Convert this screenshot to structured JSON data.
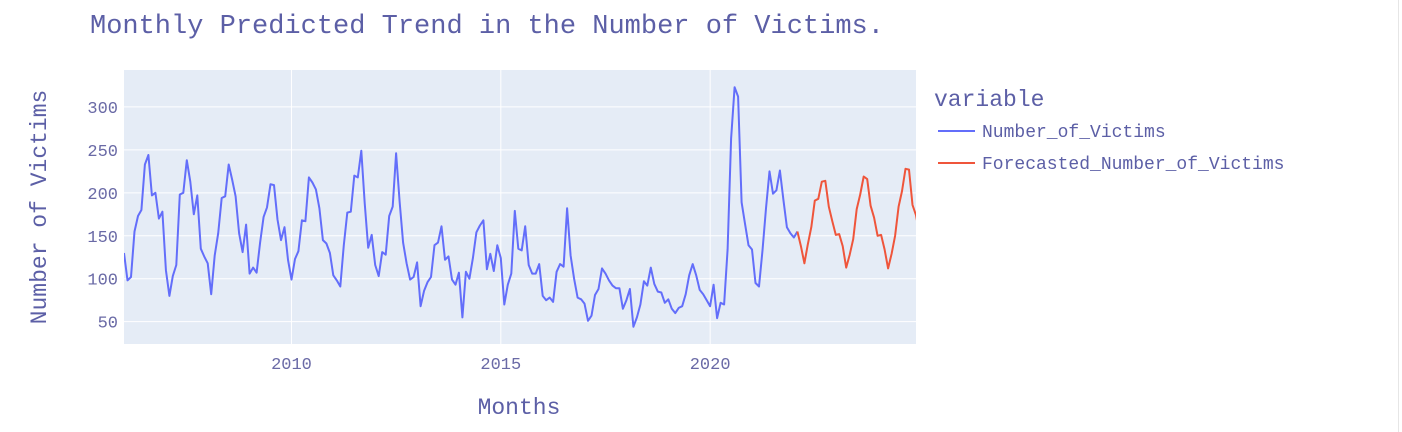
{
  "chart_data": {
    "type": "line",
    "title": "Monthly Predicted Trend in the Number of Victims.",
    "xlabel": "Months",
    "ylabel": "Number of Victims",
    "x_tick_labels": [
      "2010",
      "2015",
      "2020"
    ],
    "y_tick_labels": [
      "50",
      "100",
      "150",
      "200",
      "250",
      "300"
    ],
    "xlim": [
      "2006-01",
      "2024-12"
    ],
    "ylim": [
      24,
      343
    ],
    "grid": true,
    "legend": {
      "title": "variable",
      "placement": "right"
    },
    "series": [
      {
        "name": "Number_of_Victims",
        "color": "#636efa",
        "points": [
          [
            "2006-01",
            130
          ],
          [
            "2006-02",
            98
          ],
          [
            "2006-03",
            102
          ],
          [
            "2006-04",
            155
          ],
          [
            "2006-05",
            173
          ],
          [
            "2006-06",
            180
          ],
          [
            "2006-07",
            233
          ],
          [
            "2006-08",
            244
          ],
          [
            "2006-09",
            197
          ],
          [
            "2006-10",
            200
          ],
          [
            "2006-11",
            170
          ],
          [
            "2006-12",
            178
          ],
          [
            "2007-01",
            110
          ],
          [
            "2007-02",
            80
          ],
          [
            "2007-03",
            103
          ],
          [
            "2007-04",
            116
          ],
          [
            "2007-05",
            198
          ],
          [
            "2007-06",
            200
          ],
          [
            "2007-07",
            238
          ],
          [
            "2007-08",
            213
          ],
          [
            "2007-09",
            175
          ],
          [
            "2007-10",
            197
          ],
          [
            "2007-11",
            135
          ],
          [
            "2007-12",
            126
          ],
          [
            "2008-01",
            118
          ],
          [
            "2008-02",
            82
          ],
          [
            "2008-03",
            127
          ],
          [
            "2008-04",
            153
          ],
          [
            "2008-05",
            194
          ],
          [
            "2008-06",
            196
          ],
          [
            "2008-07",
            233
          ],
          [
            "2008-08",
            215
          ],
          [
            "2008-09",
            196
          ],
          [
            "2008-10",
            153
          ],
          [
            "2008-11",
            131
          ],
          [
            "2008-12",
            163
          ],
          [
            "2009-01",
            106
          ],
          [
            "2009-02",
            113
          ],
          [
            "2009-03",
            107
          ],
          [
            "2009-04",
            142
          ],
          [
            "2009-05",
            172
          ],
          [
            "2009-06",
            183
          ],
          [
            "2009-07",
            210
          ],
          [
            "2009-08",
            209
          ],
          [
            "2009-09",
            169
          ],
          [
            "2009-10",
            145
          ],
          [
            "2009-11",
            160
          ],
          [
            "2009-12",
            122
          ],
          [
            "2010-01",
            99
          ],
          [
            "2010-02",
            123
          ],
          [
            "2010-03",
            132
          ],
          [
            "2010-04",
            168
          ],
          [
            "2010-05",
            167
          ],
          [
            "2010-06",
            218
          ],
          [
            "2010-07",
            212
          ],
          [
            "2010-08",
            204
          ],
          [
            "2010-09",
            182
          ],
          [
            "2010-10",
            145
          ],
          [
            "2010-11",
            141
          ],
          [
            "2010-12",
            130
          ],
          [
            "2011-01",
            104
          ],
          [
            "2011-02",
            98
          ],
          [
            "2011-03",
            91
          ],
          [
            "2011-04",
            139
          ],
          [
            "2011-05",
            177
          ],
          [
            "2011-06",
            178
          ],
          [
            "2011-07",
            220
          ],
          [
            "2011-08",
            218
          ],
          [
            "2011-09",
            249
          ],
          [
            "2011-10",
            188
          ],
          [
            "2011-11",
            136
          ],
          [
            "2011-12",
            151
          ],
          [
            "2012-01",
            116
          ],
          [
            "2012-02",
            103
          ],
          [
            "2012-03",
            131
          ],
          [
            "2012-04",
            128
          ],
          [
            "2012-05",
            173
          ],
          [
            "2012-06",
            184
          ],
          [
            "2012-07",
            246
          ],
          [
            "2012-08",
            190
          ],
          [
            "2012-09",
            142
          ],
          [
            "2012-10",
            118
          ],
          [
            "2012-11",
            99
          ],
          [
            "2012-12",
            102
          ],
          [
            "2013-01",
            119
          ],
          [
            "2013-02",
            68
          ],
          [
            "2013-03",
            86
          ],
          [
            "2013-04",
            96
          ],
          [
            "2013-05",
            102
          ],
          [
            "2013-06",
            139
          ],
          [
            "2013-07",
            142
          ],
          [
            "2013-08",
            161
          ],
          [
            "2013-09",
            122
          ],
          [
            "2013-10",
            126
          ],
          [
            "2013-11",
            99
          ],
          [
            "2013-12",
            93
          ],
          [
            "2014-01",
            107
          ],
          [
            "2014-02",
            55
          ],
          [
            "2014-03",
            108
          ],
          [
            "2014-04",
            100
          ],
          [
            "2014-05",
            124
          ],
          [
            "2014-06",
            154
          ],
          [
            "2014-07",
            162
          ],
          [
            "2014-08",
            168
          ],
          [
            "2014-09",
            111
          ],
          [
            "2014-10",
            129
          ],
          [
            "2014-11",
            109
          ],
          [
            "2014-12",
            139
          ],
          [
            "2015-01",
            124
          ],
          [
            "2015-02",
            70
          ],
          [
            "2015-03",
            93
          ],
          [
            "2015-04",
            106
          ],
          [
            "2015-05",
            179
          ],
          [
            "2015-06",
            135
          ],
          [
            "2015-07",
            133
          ],
          [
            "2015-08",
            161
          ],
          [
            "2015-09",
            116
          ],
          [
            "2015-10",
            106
          ],
          [
            "2015-11",
            106
          ],
          [
            "2015-12",
            117
          ],
          [
            "2016-01",
            80
          ],
          [
            "2016-02",
            75
          ],
          [
            "2016-03",
            78
          ],
          [
            "2016-04",
            73
          ],
          [
            "2016-05",
            108
          ],
          [
            "2016-06",
            117
          ],
          [
            "2016-07",
            114
          ],
          [
            "2016-08",
            182
          ],
          [
            "2016-09",
            127
          ],
          [
            "2016-10",
            100
          ],
          [
            "2016-11",
            78
          ],
          [
            "2016-12",
            76
          ],
          [
            "2017-01",
            71
          ],
          [
            "2017-02",
            51
          ],
          [
            "2017-03",
            57
          ],
          [
            "2017-04",
            81
          ],
          [
            "2017-05",
            88
          ],
          [
            "2017-06",
            112
          ],
          [
            "2017-07",
            106
          ],
          [
            "2017-08",
            98
          ],
          [
            "2017-09",
            92
          ],
          [
            "2017-10",
            89
          ],
          [
            "2017-11",
            89
          ],
          [
            "2017-12",
            65
          ],
          [
            "2018-01",
            75
          ],
          [
            "2018-02",
            88
          ],
          [
            "2018-03",
            44
          ],
          [
            "2018-04",
            55
          ],
          [
            "2018-05",
            70
          ],
          [
            "2018-06",
            97
          ],
          [
            "2018-07",
            92
          ],
          [
            "2018-08",
            113
          ],
          [
            "2018-09",
            94
          ],
          [
            "2018-10",
            85
          ],
          [
            "2018-11",
            84
          ],
          [
            "2018-12",
            72
          ],
          [
            "2019-01",
            76
          ],
          [
            "2019-02",
            65
          ],
          [
            "2019-03",
            60
          ],
          [
            "2019-04",
            66
          ],
          [
            "2019-05",
            68
          ],
          [
            "2019-06",
            82
          ],
          [
            "2019-07",
            104
          ],
          [
            "2019-08",
            117
          ],
          [
            "2019-09",
            104
          ],
          [
            "2019-10",
            87
          ],
          [
            "2019-11",
            82
          ],
          [
            "2019-12",
            75
          ],
          [
            "2020-01",
            68
          ],
          [
            "2020-02",
            93
          ],
          [
            "2020-03",
            54
          ],
          [
            "2020-04",
            72
          ],
          [
            "2020-05",
            70
          ],
          [
            "2020-06",
            134
          ],
          [
            "2020-07",
            263
          ],
          [
            "2020-08",
            323
          ],
          [
            "2020-09",
            312
          ],
          [
            "2020-10",
            189
          ],
          [
            "2020-11",
            164
          ],
          [
            "2020-12",
            139
          ],
          [
            "2021-01",
            134
          ],
          [
            "2021-02",
            95
          ],
          [
            "2021-03",
            91
          ],
          [
            "2021-04",
            133
          ],
          [
            "2021-05",
            182
          ],
          [
            "2021-06",
            225
          ],
          [
            "2021-07",
            199
          ],
          [
            "2021-08",
            203
          ],
          [
            "2021-09",
            226
          ],
          [
            "2021-10",
            192
          ],
          [
            "2021-11",
            160
          ],
          [
            "2021-12",
            153
          ],
          [
            "2022-01",
            148
          ],
          [
            "2022-02",
            155
          ]
        ]
      },
      {
        "name": "Forecasted_Number_of_Victims",
        "color": "#ef553b",
        "points": [
          [
            "2022-02",
            155
          ],
          [
            "2022-03",
            138
          ],
          [
            "2022-04",
            118
          ],
          [
            "2022-05",
            140
          ],
          [
            "2022-06",
            160
          ],
          [
            "2022-07",
            191
          ],
          [
            "2022-08",
            193
          ],
          [
            "2022-09",
            213
          ],
          [
            "2022-10",
            214
          ],
          [
            "2022-11",
            184
          ],
          [
            "2022-12",
            167
          ],
          [
            "2023-01",
            151
          ],
          [
            "2023-02",
            152
          ],
          [
            "2023-03",
            138
          ],
          [
            "2023-04",
            113
          ],
          [
            "2023-05",
            128
          ],
          [
            "2023-06",
            146
          ],
          [
            "2023-07",
            181
          ],
          [
            "2023-08",
            198
          ],
          [
            "2023-09",
            219
          ],
          [
            "2023-10",
            216
          ],
          [
            "2023-11",
            185
          ],
          [
            "2023-12",
            171
          ],
          [
            "2024-01",
            150
          ],
          [
            "2024-02",
            151
          ],
          [
            "2024-03",
            134
          ],
          [
            "2024-04",
            112
          ],
          [
            "2024-05",
            129
          ],
          [
            "2024-06",
            150
          ],
          [
            "2024-07",
            184
          ],
          [
            "2024-08",
            202
          ],
          [
            "2024-09",
            228
          ],
          [
            "2024-10",
            227
          ],
          [
            "2024-11",
            186
          ],
          [
            "2024-12",
            174
          ],
          [
            "2025-01",
            152
          ]
        ]
      }
    ]
  }
}
